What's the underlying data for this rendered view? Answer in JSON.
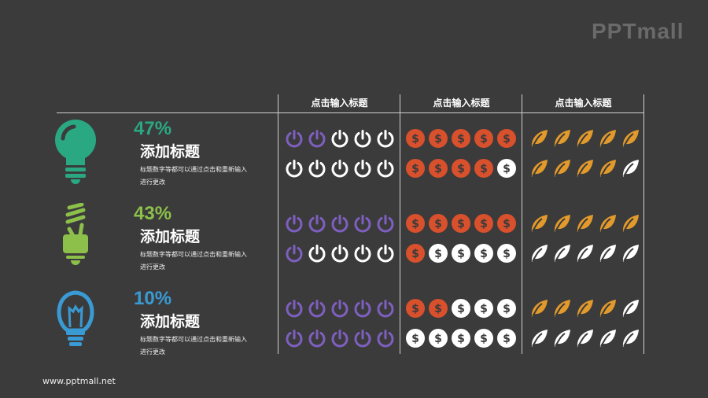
{
  "logo": "PPTmall",
  "footer": "www.pptmall.net",
  "columns": [
    "点击输入标题",
    "点击输入标题",
    "点击输入标题"
  ],
  "colors": {
    "background": "#3b3b3b",
    "power": "#7e5fbf",
    "dollar": "#d9502c",
    "leaf": "#e39a2c",
    "inactive": "#ffffff"
  },
  "rows": [
    {
      "icon": "lightbulb-icon",
      "color": "#2aa882",
      "percent": "47%",
      "title": "添加标题",
      "desc": "标题数字等都可以通过点击和重新输入进行更改",
      "power": 2,
      "dollar": 9,
      "leaf": 9
    },
    {
      "icon": "cfl-bulb-icon",
      "color": "#8cc04a",
      "percent": "43%",
      "title": "添加标题",
      "desc": "标题数字等都可以通过点击和重新输入进行更改",
      "power": 6,
      "dollar": 6,
      "leaf": 5
    },
    {
      "icon": "outline-bulb-icon",
      "color": "#3a9ad4",
      "percent": "10%",
      "title": "添加标题",
      "desc": "标题数字等都可以通过点击和重新输入进行更改",
      "power": 10,
      "dollar": 2,
      "leaf": 4
    }
  ],
  "icons_per_cell": 10
}
